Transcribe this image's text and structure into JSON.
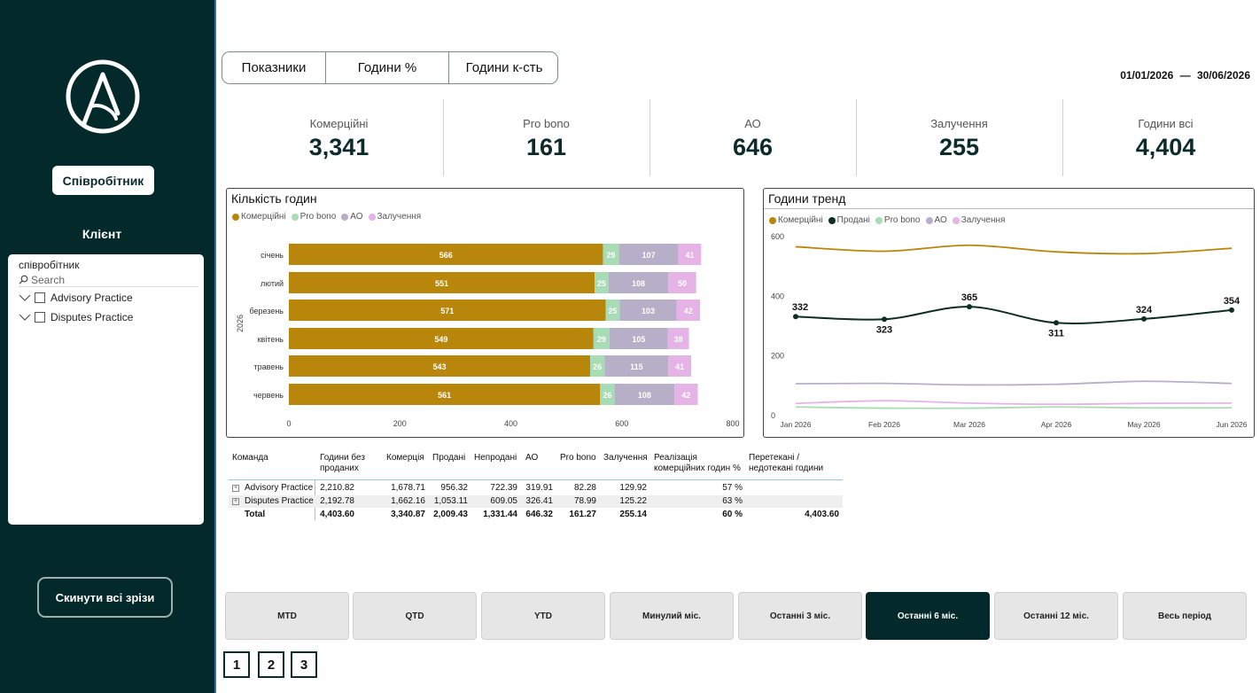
{
  "sidebar": {
    "employee_button": "Співробітник",
    "client_label": "Клієнт",
    "slicer": {
      "title": "співробітник",
      "search_placeholder": "Search",
      "items": [
        "Advisory Practice",
        "Disputes Practice"
      ]
    },
    "reset_button": "Скинути всі зрізи",
    "colors": {
      "background": "#03292a"
    }
  },
  "tabs": [
    "Показники",
    "Години %",
    "Години к-сть"
  ],
  "date_range": {
    "start": "01/01/2026",
    "sep": "—",
    "end": "30/06/2026"
  },
  "kpis": [
    {
      "label": "Комерційні",
      "value": "3,341"
    },
    {
      "label": "Pro bono",
      "value": "161"
    },
    {
      "label": "АО",
      "value": "646"
    },
    {
      "label": "Залучення",
      "value": "255"
    },
    {
      "label": "Години всі",
      "value": "4,404"
    }
  ],
  "bar_chart": {
    "title": "Кількість годин",
    "legend": [
      "Комерційні",
      "Pro bono",
      "АО",
      "Залучення"
    ],
    "y_group_label": "2026",
    "x_ticks": [
      "0",
      "200",
      "400",
      "600",
      "800"
    ]
  },
  "line_chart": {
    "title": "Години тренд",
    "legend": [
      "Комерційні",
      "Продані",
      "Pro bono",
      "АО",
      "Залучення"
    ],
    "y_ticks": [
      "600",
      "400",
      "200",
      "0"
    ]
  },
  "chart_data": [
    {
      "type": "bar",
      "orientation": "horizontal-stacked",
      "title": "Кількість годин",
      "categories": [
        "січень",
        "лютий",
        "березень",
        "квітень",
        "травень",
        "червень"
      ],
      "series": [
        {
          "name": "Комерційні",
          "values": [
            566,
            551,
            571,
            549,
            543,
            561
          ],
          "color": "#b8860b"
        },
        {
          "name": "Pro bono",
          "values": [
            29,
            25,
            25,
            29,
            26,
            26
          ],
          "color": "#a8dcb4"
        },
        {
          "name": "АО",
          "values": [
            107,
            108,
            103,
            105,
            115,
            108
          ],
          "color": "#b7aec8"
        },
        {
          "name": "Залучення",
          "values": [
            41,
            50,
            42,
            38,
            41,
            42
          ],
          "color": "#e6b3e6"
        }
      ],
      "xlim": [
        0,
        800
      ],
      "legend_position": "top-left"
    },
    {
      "type": "line",
      "title": "Години тренд",
      "x": [
        "Jan 2026",
        "Feb 2026",
        "Mar 2026",
        "Apr 2026",
        "May 2026",
        "Jun 2026"
      ],
      "series": [
        {
          "name": "Комерційні",
          "values": [
            566,
            551,
            571,
            549,
            543,
            561
          ],
          "color": "#b8860b"
        },
        {
          "name": "Продані",
          "values": [
            332,
            323,
            365,
            311,
            324,
            354
          ],
          "color": "#0e2e22",
          "labels": true
        },
        {
          "name": "Pro bono",
          "values": [
            29,
            25,
            25,
            29,
            26,
            26
          ],
          "color": "#a8dcb4"
        },
        {
          "name": "АО",
          "values": [
            107,
            108,
            103,
            105,
            115,
            108
          ],
          "color": "#b7aec8"
        },
        {
          "name": "Залучення",
          "values": [
            41,
            50,
            42,
            38,
            41,
            42
          ],
          "color": "#e6b3e6"
        }
      ],
      "ylim": [
        0,
        600
      ],
      "legend_position": "top-left"
    }
  ],
  "table": {
    "headers": [
      [
        "Команда"
      ],
      [
        "Години без",
        "проданих"
      ],
      [
        "Комерція"
      ],
      [
        "Продані"
      ],
      [
        "Непродані"
      ],
      [
        "АО"
      ],
      [
        "Pro bono"
      ],
      [
        "Залучення"
      ],
      [
        "Реалізація",
        "комерційних годин %"
      ],
      [
        "Перетекані /",
        "недотекані години"
      ]
    ],
    "rows": [
      [
        "Advisory Practice",
        "2,210.82",
        "1,678.71",
        "956.32",
        "722.39",
        "319.91",
        "82.28",
        "129.92",
        "57 %",
        ""
      ],
      [
        "Disputes Practice",
        "2,192.78",
        "1,662.16",
        "1,053.11",
        "609.05",
        "326.41",
        "78.99",
        "125.22",
        "63 %",
        ""
      ]
    ],
    "total": [
      "Total",
      "4,403.60",
      "3,340.87",
      "2,009.43",
      "1,331.44",
      "646.32",
      "161.27",
      "255.14",
      "60 %",
      "4,403.60"
    ]
  },
  "periods": [
    "MTD",
    "QTD",
    "YTD",
    "Минулий міс.",
    "Останні 3 міс.",
    "Останні 6 міс.",
    "Останні 12 міс.",
    "Весь період"
  ],
  "active_period": "Останні 6 міс.",
  "pages": [
    "1",
    "2",
    "3"
  ]
}
